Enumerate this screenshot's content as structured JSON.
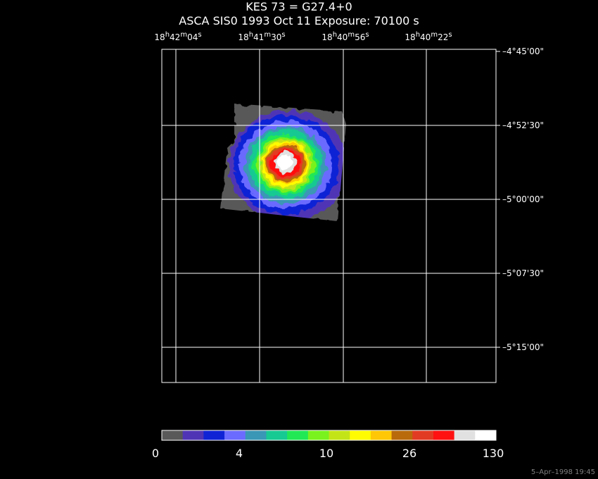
{
  "title": "KES 73 = G27.4+0",
  "subtitle": "ASCA SIS0   1993 Oct 11    Exposure: 70100 s",
  "ra_ticks": [
    {
      "h": "18",
      "m": "42",
      "s": "04"
    },
    {
      "h": "18",
      "m": "41",
      "s": "30"
    },
    {
      "h": "18",
      "m": "40",
      "s": "56"
    },
    {
      "h": "18",
      "m": "40",
      "s": "22"
    }
  ],
  "dec_ticks": [
    "–4°45'00\"",
    "–4°52'30\"",
    "–5°00'00\"",
    "–5°07'30\"",
    "–5°15'00\""
  ],
  "colorbar": {
    "colors": [
      "#595959",
      "#4f35b5",
      "#1024d5",
      "#6b6bff",
      "#3a97b5",
      "#17c992",
      "#22e855",
      "#79f21d",
      "#c3e417",
      "#fffb00",
      "#ffc705",
      "#b96a0b",
      "#e23b23",
      "#ff1111",
      "#e1e1e1",
      "#ffffff"
    ],
    "labels": [
      "0",
      "4",
      "10",
      "26",
      "130"
    ]
  },
  "timestamp": "5–Apr–1998 19:45",
  "colors": {
    "background": "#000000",
    "grid": "#ffffff",
    "frame_border": "#ffffff"
  }
}
